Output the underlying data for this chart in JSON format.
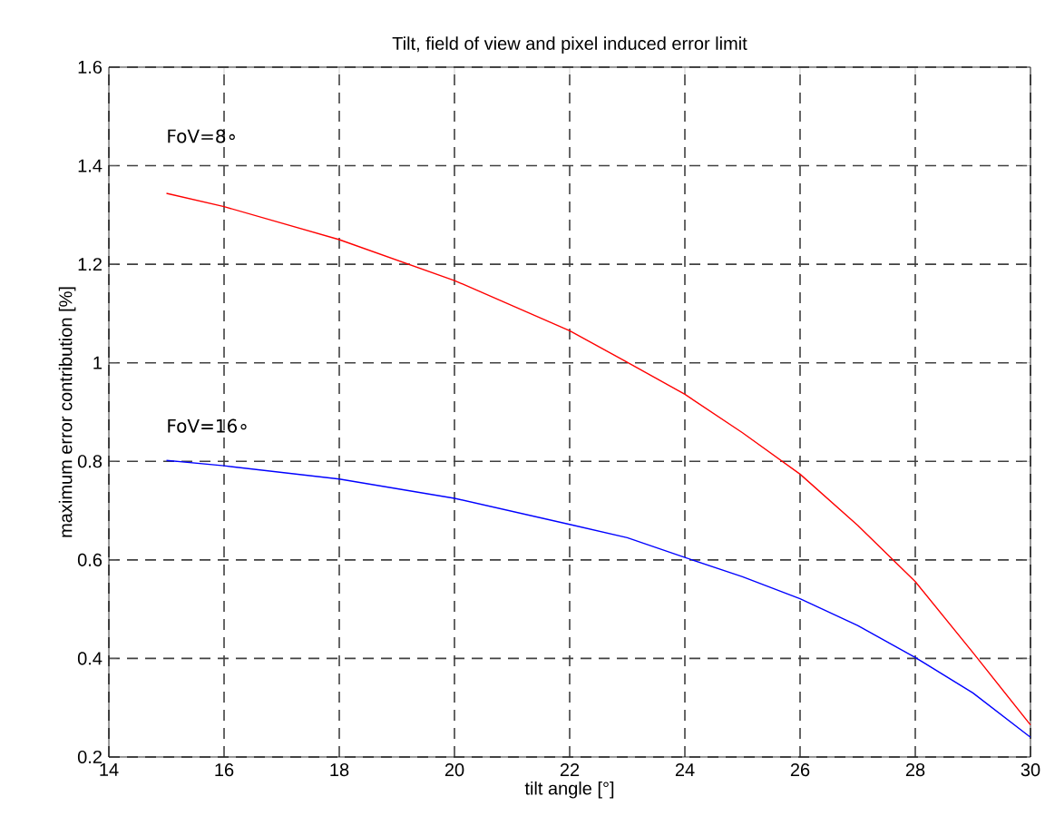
{
  "chart_data": {
    "type": "line",
    "title": "Tilt, field of view and pixel induced error limit",
    "xlabel": "tilt angle [°]",
    "ylabel": "maximum error contribution [%]",
    "x": [
      15,
      16,
      18,
      20,
      22,
      23,
      24,
      25,
      26,
      27,
      28,
      29,
      30
    ],
    "series": [
      {
        "color": "#ff0000",
        "values": [
          1.344,
          1.317,
          1.25,
          1.167,
          1.065,
          1.001,
          0.936,
          0.858,
          0.774,
          0.67,
          0.556,
          0.412,
          0.265
        ]
      },
      {
        "color": "#0000ff",
        "values": [
          0.802,
          0.791,
          0.764,
          0.725,
          0.672,
          0.645,
          0.605,
          0.566,
          0.521,
          0.467,
          0.402,
          0.33,
          0.24
        ]
      }
    ],
    "annotations": [
      "FoV=8∘",
      "FoV=16∘"
    ],
    "xlim": [
      14,
      30
    ],
    "ylim": [
      0.2,
      1.6
    ],
    "xticks": [
      14,
      16,
      18,
      20,
      22,
      24,
      26,
      28,
      30
    ],
    "yticks": [
      0.2,
      0.4,
      0.6,
      0.8,
      1,
      1.2,
      1.4,
      1.6
    ],
    "grid": true,
    "line_style": "solid",
    "marker": "none"
  }
}
